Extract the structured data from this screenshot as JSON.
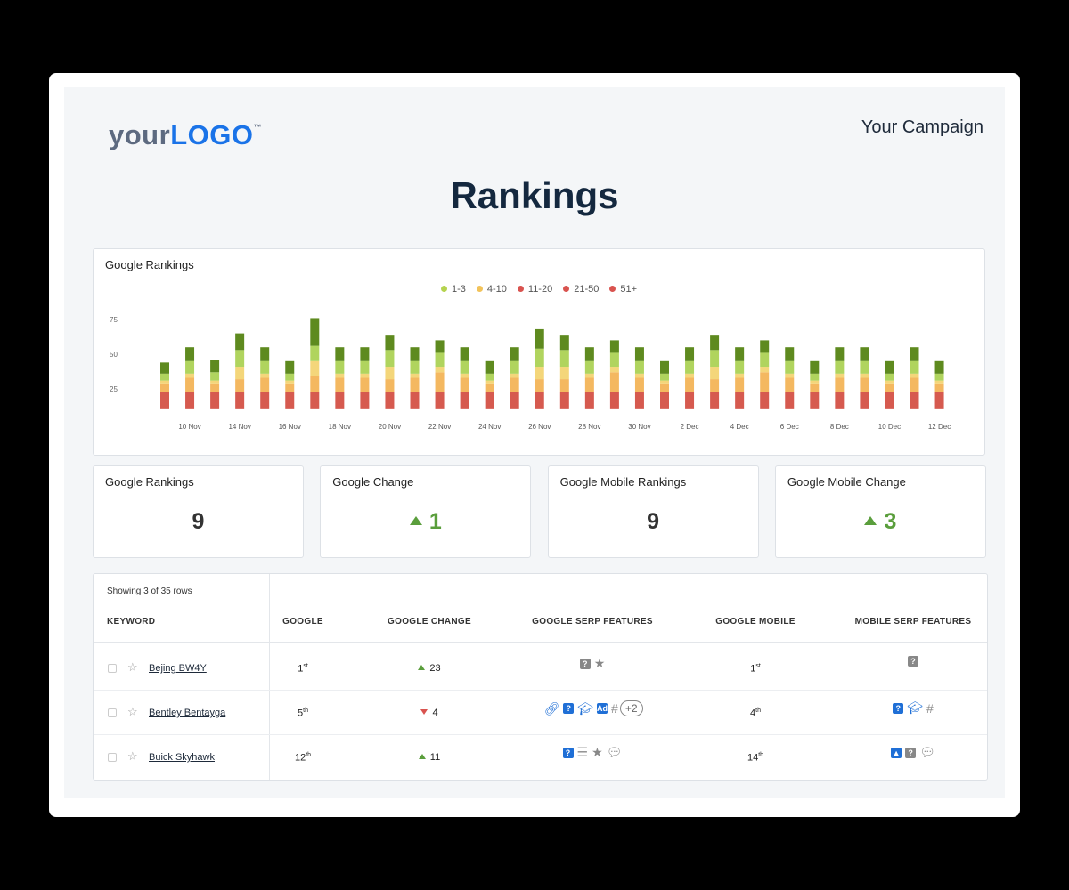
{
  "header": {
    "logo_light": "your",
    "logo_bold": "LOGO",
    "logo_tm": "™",
    "campaign": "Your Campaign",
    "title": "Rankings"
  },
  "chart_data": {
    "type": "bar",
    "stacked": true,
    "title": "Google Rankings",
    "legend": [
      {
        "name": "1-3",
        "color": "#b5d34f"
      },
      {
        "name": "4-10",
        "color": "#f2c35a"
      },
      {
        "name": "11-20",
        "color": "#d9534f"
      },
      {
        "name": "21-50",
        "color": "#d9534f"
      },
      {
        "name": "51+",
        "color": "#d9534f"
      }
    ],
    "segment_colors": [
      "#d65a4f",
      "#f4b860",
      "#f4d67a",
      "#b0d45e",
      "#5e8a1f"
    ],
    "yticks": [
      25,
      50,
      75
    ],
    "ylim": [
      0,
      80
    ],
    "xlabels": [
      "10 Nov",
      "14 Nov",
      "16 Nov",
      "18 Nov",
      "20 Nov",
      "22 Nov",
      "24 Nov",
      "26 Nov",
      "28 Nov",
      "30 Nov",
      "2 Dec",
      "4 Dec",
      "6 Dec",
      "8 Dec",
      "10 Dec",
      "12 Dec"
    ],
    "bars": [
      [
        12,
        6,
        2,
        5,
        8
      ],
      [
        12,
        10,
        3,
        9,
        10
      ],
      [
        12,
        6,
        2,
        6,
        9
      ],
      [
        12,
        9,
        9,
        12,
        12
      ],
      [
        12,
        10,
        3,
        9,
        10
      ],
      [
        12,
        6,
        2,
        5,
        9
      ],
      [
        12,
        11,
        11,
        11,
        20
      ],
      [
        12,
        10,
        3,
        9,
        10
      ],
      [
        12,
        10,
        3,
        9,
        10
      ],
      [
        12,
        9,
        9,
        12,
        11
      ],
      [
        12,
        10,
        3,
        9,
        10
      ],
      [
        12,
        14,
        4,
        10,
        9
      ],
      [
        12,
        10,
        3,
        9,
        10
      ],
      [
        12,
        6,
        2,
        5,
        9
      ],
      [
        12,
        10,
        3,
        9,
        10
      ],
      [
        12,
        9,
        9,
        13,
        14
      ],
      [
        12,
        9,
        9,
        12,
        11
      ],
      [
        12,
        10,
        3,
        9,
        10
      ],
      [
        12,
        14,
        4,
        10,
        9
      ],
      [
        12,
        10,
        3,
        9,
        10
      ],
      [
        12,
        6,
        2,
        5,
        9
      ],
      [
        12,
        10,
        3,
        9,
        10
      ],
      [
        12,
        9,
        9,
        12,
        11
      ],
      [
        12,
        10,
        3,
        9,
        10
      ],
      [
        12,
        14,
        4,
        10,
        9
      ],
      [
        12,
        10,
        3,
        9,
        10
      ],
      [
        12,
        6,
        2,
        5,
        9
      ],
      [
        12,
        10,
        3,
        9,
        10
      ],
      [
        12,
        10,
        3,
        9,
        10
      ],
      [
        12,
        6,
        2,
        5,
        9
      ],
      [
        12,
        10,
        3,
        9,
        10
      ],
      [
        12,
        6,
        2,
        5,
        9
      ]
    ]
  },
  "stats": [
    {
      "label": "Google Rankings",
      "value": "9",
      "up": false
    },
    {
      "label": "Google Change",
      "value": "1",
      "up": true
    },
    {
      "label": "Google Mobile Rankings",
      "value": "9",
      "up": false
    },
    {
      "label": "Google Mobile Change",
      "value": "3",
      "up": true
    }
  ],
  "table": {
    "showing": "Showing 3 of 35 rows",
    "headers": [
      "KEYWORD",
      "GOOGLE",
      "GOOGLE CHANGE",
      "GOOGLE SERP FEATURES",
      "GOOGLE MOBILE",
      "MOBILE SERP FEATURES"
    ],
    "rows": [
      {
        "keyword": "Bejing BW4Y",
        "google": "1",
        "google_sup": "st",
        "change": "23",
        "dir": "up",
        "mobile": "1",
        "mobile_sup": "st"
      },
      {
        "keyword": "Bentley Bentayga",
        "google": "5",
        "google_sup": "th",
        "change": "4",
        "dir": "down",
        "mobile": "4",
        "mobile_sup": "th",
        "more": "+2"
      },
      {
        "keyword": "Buick Skyhawk",
        "google": "12",
        "google_sup": "th",
        "change": "11",
        "dir": "up",
        "mobile": "14",
        "mobile_sup": "th"
      }
    ]
  }
}
